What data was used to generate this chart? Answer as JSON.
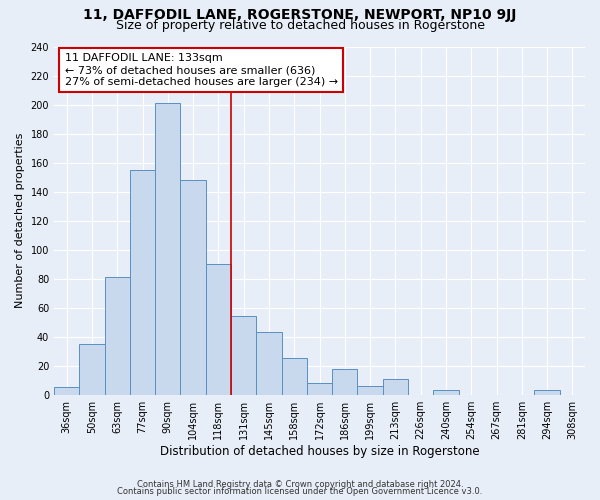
{
  "title1": "11, DAFFODIL LANE, ROGERSTONE, NEWPORT, NP10 9JJ",
  "title2": "Size of property relative to detached houses in Rogerstone",
  "xlabel": "Distribution of detached houses by size in Rogerstone",
  "ylabel": "Number of detached properties",
  "footer1": "Contains HM Land Registry data © Crown copyright and database right 2024.",
  "footer2": "Contains public sector information licensed under the Open Government Licence v3.0.",
  "bin_labels": [
    "36sqm",
    "50sqm",
    "63sqm",
    "77sqm",
    "90sqm",
    "104sqm",
    "118sqm",
    "131sqm",
    "145sqm",
    "158sqm",
    "172sqm",
    "186sqm",
    "199sqm",
    "213sqm",
    "226sqm",
    "240sqm",
    "254sqm",
    "267sqm",
    "281sqm",
    "294sqm",
    "308sqm"
  ],
  "bar_heights": [
    5,
    35,
    81,
    155,
    201,
    148,
    90,
    54,
    43,
    25,
    8,
    18,
    6,
    11,
    0,
    3,
    0,
    0,
    0,
    3,
    0
  ],
  "bar_color": "#c8d9ed",
  "bar_edge_color": "#5a8fc3",
  "annotation_box_text": "11 DAFFODIL LANE: 133sqm\n← 73% of detached houses are smaller (636)\n27% of semi-detached houses are larger (234) →",
  "annotation_box_edge_color": "#cc0000",
  "vline_color": "#cc0000",
  "vline_x": 6.5,
  "ylim": [
    0,
    240
  ],
  "yticks": [
    0,
    20,
    40,
    60,
    80,
    100,
    120,
    140,
    160,
    180,
    200,
    220,
    240
  ],
  "background_color": "#e8eef8",
  "plot_background_color": "#e8eef8",
  "grid_color": "#ffffff",
  "title1_fontsize": 10,
  "title2_fontsize": 9,
  "xlabel_fontsize": 8.5,
  "ylabel_fontsize": 8,
  "tick_fontsize": 7,
  "annotation_fontsize": 8,
  "footer_fontsize": 6
}
